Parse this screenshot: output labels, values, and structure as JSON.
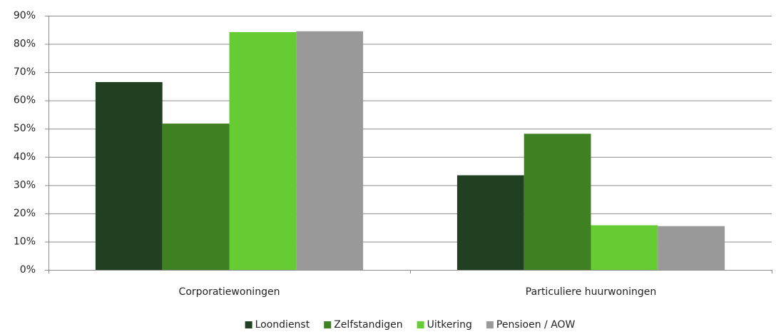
{
  "chart_data": {
    "type": "bar",
    "categories": [
      "Corporatiewoningen",
      "Particuliere huurwoningen"
    ],
    "series": [
      {
        "name": "Loondienst",
        "color": "#214021",
        "values": [
          66.5,
          33.5
        ]
      },
      {
        "name": "Zelfstandigen",
        "color": "#3f8122",
        "values": [
          51.8,
          48.2
        ]
      },
      {
        "name": "Uitkering",
        "color": "#66cc33",
        "values": [
          84.2,
          15.8
        ]
      },
      {
        "name": "Pensioen / AOW",
        "color": "#999999",
        "values": [
          84.5,
          15.5
        ]
      }
    ],
    "ylim": [
      0,
      90
    ],
    "yticks": [
      {
        "value": 0,
        "label": "0%"
      },
      {
        "value": 10,
        "label": "10%"
      },
      {
        "value": 20,
        "label": "20%"
      },
      {
        "value": 30,
        "label": "30%"
      },
      {
        "value": 40,
        "label": "40%"
      },
      {
        "value": 50,
        "label": "50%"
      },
      {
        "value": 60,
        "label": "60%"
      },
      {
        "value": 70,
        "label": "70%"
      },
      {
        "value": 80,
        "label": "80%"
      },
      {
        "value": 90,
        "label": "90%"
      }
    ],
    "grid": true,
    "legend": "bottom"
  }
}
